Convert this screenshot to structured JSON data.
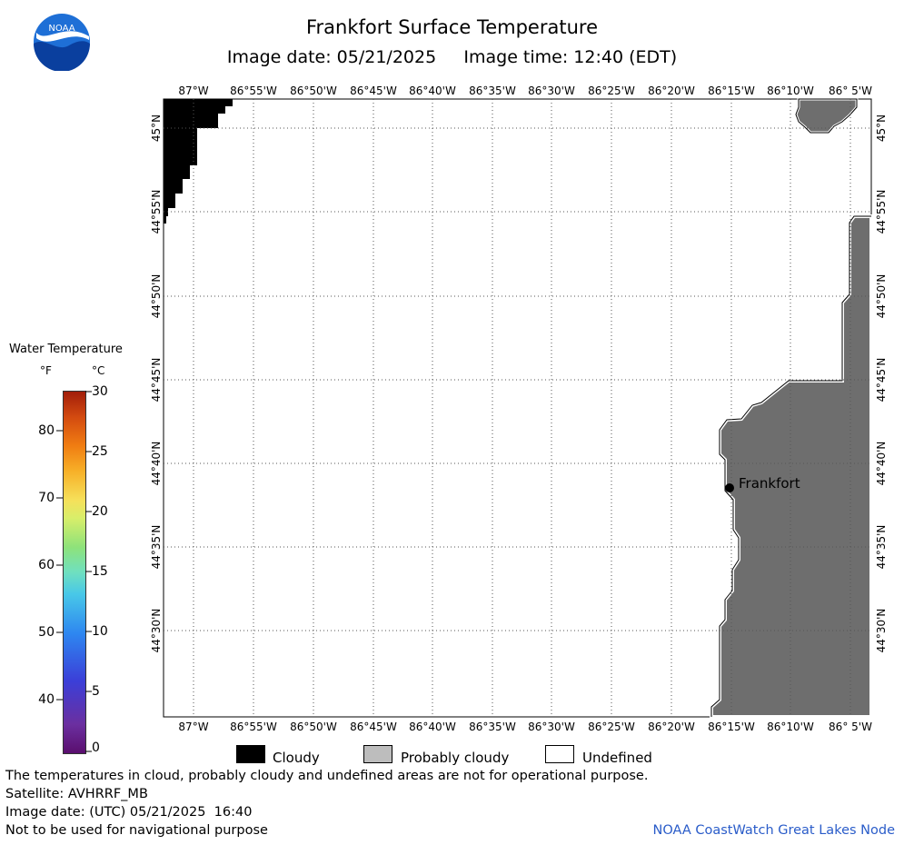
{
  "header": {
    "title": "Frankfort Surface Temperature",
    "subtitle": "Image date: 05/21/2025     Image time: 12:40 (EDT)",
    "logo_text": "NOAA"
  },
  "map": {
    "lon_labels": [
      "87°W",
      "86°55'W",
      "86°50'W",
      "86°45'W",
      "86°40'W",
      "86°35'W",
      "86°30'W",
      "86°25'W",
      "86°20'W",
      "86°15'W",
      "86°10'W",
      "86° 5'W"
    ],
    "lat_labels": [
      "45°N",
      "44°55'N",
      "44°50'N",
      "44°45'N",
      "44°40'N",
      "44°35'N",
      "44°30'N"
    ],
    "place_label": "Frankfort",
    "colors": {
      "land": "#6e6e6e",
      "cloud": "#000000",
      "water": "#ffffff",
      "grid": "#555555"
    }
  },
  "legend": {
    "title": "Water Temperature",
    "unit_f": "°F",
    "unit_c": "°C",
    "ticks_f": [
      "80",
      "70",
      "60",
      "50",
      "40"
    ],
    "ticks_c": [
      "30",
      "25",
      "20",
      "15",
      "10",
      "5",
      "0"
    ]
  },
  "key": {
    "cloudy": "Cloudy",
    "probably_cloudy": "Probably cloudy",
    "undefined": "Undefined"
  },
  "footer": {
    "line1": "The temperatures in cloud, probably cloudy and undefined areas are not for operational purpose.",
    "line2": "Satellite: AVHRRF_MB",
    "line3": "Image date: (UTC) 05/21/2025  16:40",
    "line4": "Not to be used for navigational purpose",
    "credit": "NOAA CoastWatch Great Lakes Node"
  }
}
